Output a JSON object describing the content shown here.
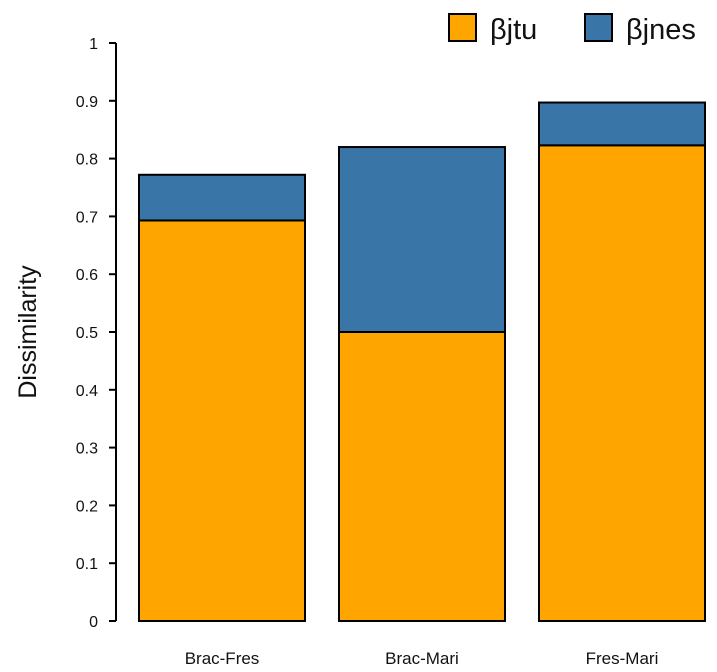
{
  "chart_data": {
    "type": "bar",
    "stacked": true,
    "categories": [
      "Brac-Fres",
      "Brac-Mari",
      "Fres-Mari"
    ],
    "series": [
      {
        "name": "βjtu",
        "values": [
          0.693,
          0.5,
          0.823
        ],
        "color": "#FFA500"
      },
      {
        "name": "βjnes",
        "values": [
          0.079,
          0.32,
          0.074
        ],
        "color": "#3A75A8"
      }
    ],
    "totals": [
      0.772,
      0.82,
      0.897
    ],
    "ylabel": "Dissimilarity",
    "xlabel": "",
    "ylim": [
      0,
      1
    ],
    "yticks": [
      "0",
      "0.1",
      "0.2",
      "0.3",
      "0.4",
      "0.5",
      "0.6",
      "0.7",
      "0.8",
      "0.9",
      "1"
    ],
    "grid": false,
    "legend_position": "top-right"
  }
}
